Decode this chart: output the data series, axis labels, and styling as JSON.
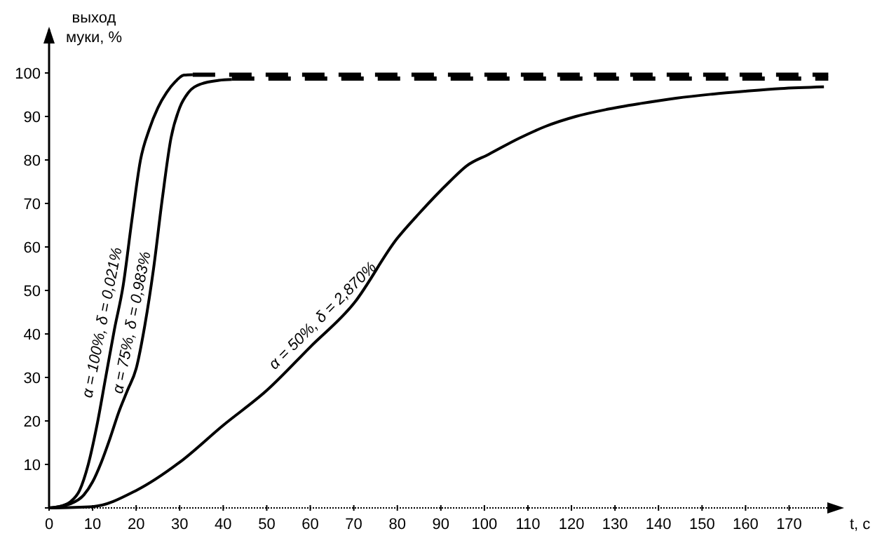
{
  "chart_data": {
    "type": "line",
    "ylabel": "выход муки, %",
    "xlabel": "t, c",
    "xlim": [
      0,
      182
    ],
    "ylim": [
      0,
      110
    ],
    "xticks": [
      0,
      10,
      20,
      30,
      40,
      50,
      60,
      70,
      80,
      90,
      100,
      110,
      120,
      130,
      140,
      150,
      160,
      170
    ],
    "yticks": [
      {
        "value": 0,
        "label": null
      },
      10,
      20,
      30,
      40,
      50,
      60,
      70,
      80,
      90,
      100
    ],
    "grid": false,
    "marker": "none",
    "series": [
      {
        "name": "α = 100%, δ = 0,021%",
        "color": "#000000",
        "line_style": "solid",
        "x": [
          0,
          3,
          5,
          7,
          9,
          11,
          13,
          15,
          17,
          19,
          21,
          23,
          25,
          27,
          29,
          31,
          33
        ],
        "values": [
          0,
          0.5,
          1.5,
          4,
          10,
          19,
          30,
          41,
          51,
          66,
          80,
          87,
          92,
          95.5,
          98,
          99.5,
          99.6
        ]
      },
      {
        "name": "α = 75%, δ = 0,983%",
        "color": "#000000",
        "line_style": "solid",
        "x": [
          0,
          5,
          8,
          10,
          12,
          14,
          16,
          18,
          20,
          22,
          24,
          26,
          28,
          30,
          32,
          35,
          39,
          42
        ],
        "values": [
          0,
          1,
          3,
          6,
          10.5,
          16,
          22,
          27,
          32,
          42,
          55,
          71,
          85,
          92,
          95.5,
          97.5,
          98.3,
          98.5
        ]
      },
      {
        "name": "α = 50%, δ = 2,870%",
        "color": "#000000",
        "line_style": "solid",
        "x": [
          0,
          10,
          20,
          30,
          40,
          50,
          60,
          70,
          80,
          85,
          92,
          96,
          101,
          108,
          114,
          121,
          128,
          136,
          144,
          152,
          160,
          168,
          178
        ],
        "values": [
          0,
          0.3,
          4,
          10.5,
          19,
          27,
          37,
          47,
          62,
          67.7,
          75,
          78.7,
          81.3,
          85,
          87.7,
          90,
          91.6,
          93,
          94.2,
          95.1,
          95.8,
          96.4,
          96.8
        ]
      },
      {
        "color": "#000000",
        "line_style": "dashed",
        "x": [
          33,
          179
        ],
        "values": [
          99.6,
          99.6
        ]
      },
      {
        "color": "#000000",
        "line_style": "dashed",
        "x": [
          42,
          179
        ],
        "values": [
          98.7,
          98.7
        ]
      }
    ]
  }
}
